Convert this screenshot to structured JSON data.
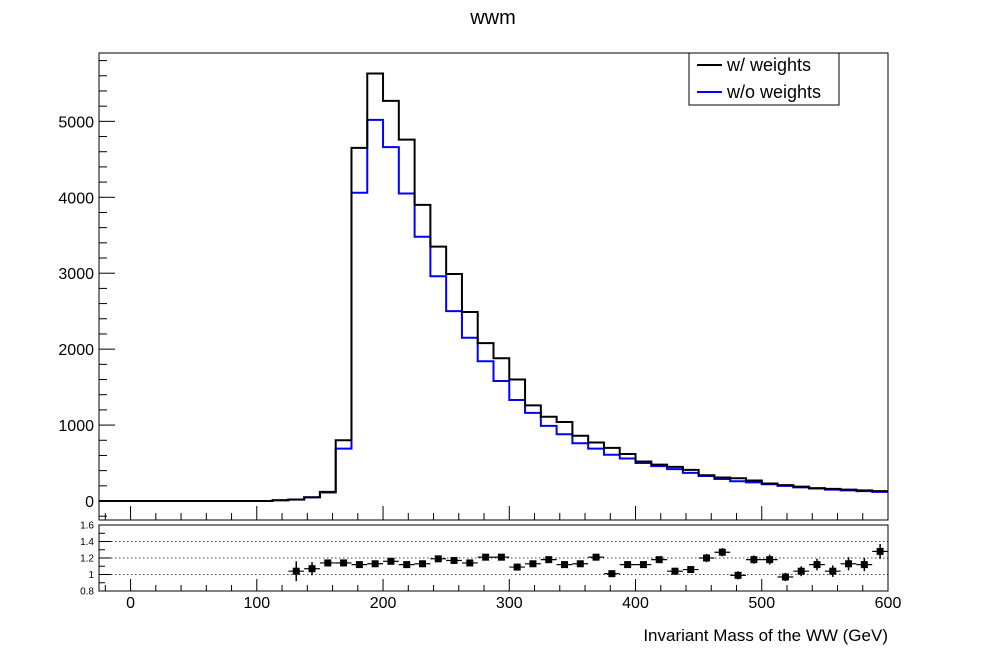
{
  "chart_data": [
    {
      "type": "line",
      "style": "step-histogram",
      "title": "wwm",
      "xlabel": "",
      "ylabel": "",
      "xlim": [
        -25,
        600
      ],
      "ylim": [
        -250,
        5900
      ],
      "bin_edges": [
        -25,
        -12.5,
        0,
        12.5,
        25,
        37.5,
        50,
        62.5,
        75,
        87.5,
        100,
        112.5,
        125,
        137.5,
        150,
        162.5,
        175,
        187.5,
        200,
        212.5,
        225,
        237.5,
        250,
        262.5,
        275,
        287.5,
        300,
        312.5,
        325,
        337.5,
        350,
        362.5,
        375,
        387.5,
        400,
        412.5,
        425,
        437.5,
        450,
        462.5,
        475,
        487.5,
        500,
        512.5,
        525,
        537.5,
        550,
        562.5,
        575,
        587.5,
        600
      ],
      "series": [
        {
          "name": "w/ weights",
          "color": "#000000",
          "values": [
            0,
            0,
            0,
            0,
            0,
            0,
            0,
            0,
            0,
            0,
            0,
            10,
            20,
            50,
            120,
            800,
            4650,
            5630,
            5270,
            4760,
            3900,
            3350,
            2990,
            2490,
            2080,
            1880,
            1600,
            1260,
            1110,
            1040,
            860,
            770,
            700,
            620,
            520,
            480,
            450,
            410,
            340,
            310,
            300,
            270,
            230,
            210,
            190,
            170,
            160,
            150,
            140,
            130
          ]
        },
        {
          "name": "w/o weights",
          "color": "#0000ff",
          "values": [
            0,
            0,
            0,
            0,
            0,
            0,
            0,
            0,
            0,
            0,
            0,
            10,
            19,
            48,
            112,
            690,
            4060,
            5020,
            4660,
            4050,
            3480,
            2960,
            2500,
            2150,
            1840,
            1580,
            1330,
            1160,
            990,
            880,
            760,
            690,
            610,
            560,
            500,
            460,
            420,
            370,
            330,
            290,
            260,
            245,
            220,
            200,
            180,
            165,
            150,
            140,
            130,
            120
          ]
        }
      ],
      "yticks": [
        0,
        1000,
        2000,
        3000,
        4000,
        5000
      ],
      "legend": [
        "w/ weights",
        "w/o weights"
      ],
      "legend_position": "top-right",
      "grid": false
    },
    {
      "type": "scatter",
      "style": "ratio-errorbars",
      "xlabel": "Invariant Mass of the WW (GeV)",
      "ylabel": "",
      "xlim": [
        -25,
        600
      ],
      "ylim": [
        0.8,
        1.6
      ],
      "xticks": [
        0,
        100,
        200,
        300,
        400,
        500,
        600
      ],
      "yticks": [
        "0.8",
        "1",
        "1.2",
        "1.4",
        "1.6"
      ],
      "grid": "dotted horizontal at 1, 1.2, 1.4",
      "x": [
        131.25,
        143.75,
        156.25,
        168.75,
        181.25,
        193.75,
        206.25,
        218.75,
        231.25,
        243.75,
        256.25,
        268.75,
        281.25,
        293.75,
        306.25,
        318.75,
        331.25,
        343.75,
        356.25,
        368.75,
        381.25,
        393.75,
        406.25,
        418.75,
        431.25,
        443.75,
        456.25,
        468.75,
        481.25,
        493.75,
        506.25,
        518.75,
        531.25,
        543.75,
        556.25,
        568.75,
        581.25,
        593.75
      ],
      "y": [
        1.04,
        1.07,
        1.14,
        1.14,
        1.12,
        1.13,
        1.16,
        1.12,
        1.13,
        1.19,
        1.17,
        1.14,
        1.21,
        1.21,
        1.09,
        1.13,
        1.18,
        1.12,
        1.13,
        1.21,
        1.01,
        1.12,
        1.12,
        1.18,
        1.04,
        1.06,
        1.2,
        1.27,
        0.99,
        1.18,
        1.18,
        0.97,
        1.04,
        1.12,
        1.04,
        1.13,
        1.12,
        1.28
      ],
      "yerr": [
        0.12,
        0.08,
        0.03,
        0.02,
        0.02,
        0.02,
        0.02,
        0.02,
        0.02,
        0.02,
        0.02,
        0.02,
        0.02,
        0.03,
        0.02,
        0.02,
        0.02,
        0.02,
        0.02,
        0.03,
        0.02,
        0.02,
        0.02,
        0.03,
        0.02,
        0.02,
        0.05,
        0.05,
        0.05,
        0.05,
        0.06,
        0.05,
        0.06,
        0.07,
        0.07,
        0.08,
        0.08,
        0.09
      ]
    }
  ]
}
